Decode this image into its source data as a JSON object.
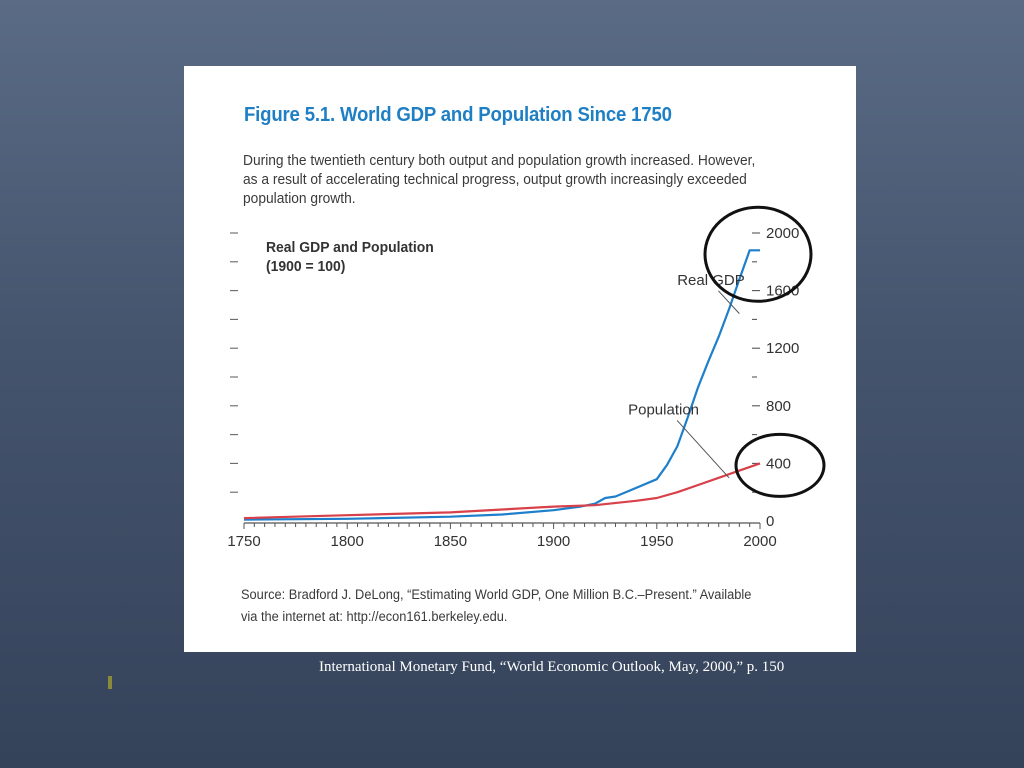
{
  "figure": {
    "title": "Figure 5.1.  World GDP and Population Since 1750",
    "description_lines": [
      "During the twentieth century both output and population growth increased. However,",
      "as a result of accelerating technical progress, output growth increasingly exceeded",
      "population growth."
    ],
    "source_lines": [
      "Source: Bradford J. DeLong, “Estimating World GDP, One Million B.C.–Present.” Available",
      "via the internet at: http://econ161.berkeley.edu."
    ]
  },
  "caption": "International Monetary Fund, “World Economic Outlook, May, 2000,” p. 150",
  "chart_data": {
    "type": "line",
    "title_lines": [
      "Real GDP and Population",
      "(1900 = 100)"
    ],
    "xlim": [
      1750,
      2000
    ],
    "ylim": [
      0,
      2000
    ],
    "x_ticks": [
      1750,
      1800,
      1850,
      1900,
      1950,
      2000
    ],
    "y_tick_labels": [
      {
        "value": 0,
        "label": "0"
      },
      {
        "value": 400,
        "label": "400"
      },
      {
        "value": 800,
        "label": "800"
      },
      {
        "value": 1200,
        "label": "1200"
      },
      {
        "value": 1600,
        "label": "1600"
      },
      {
        "value": 2000,
        "label": "2000"
      }
    ],
    "series": [
      {
        "name": "Real GDP",
        "color": "#1e7fcb",
        "points": [
          [
            1750,
            10
          ],
          [
            1800,
            15
          ],
          [
            1850,
            30
          ],
          [
            1875,
            45
          ],
          [
            1900,
            75
          ],
          [
            1913,
            100
          ],
          [
            1920,
            120
          ],
          [
            1925,
            160
          ],
          [
            1930,
            170
          ],
          [
            1940,
            230
          ],
          [
            1950,
            290
          ],
          [
            1955,
            390
          ],
          [
            1960,
            520
          ],
          [
            1965,
            720
          ],
          [
            1970,
            930
          ],
          [
            1975,
            1110
          ],
          [
            1980,
            1280
          ],
          [
            1985,
            1470
          ],
          [
            1990,
            1680
          ],
          [
            1995,
            1880
          ],
          [
            2000,
            1880
          ]
        ]
      },
      {
        "name": "Population",
        "color": "#d8404a",
        "points": [
          [
            1750,
            20
          ],
          [
            1800,
            40
          ],
          [
            1850,
            60
          ],
          [
            1900,
            100
          ],
          [
            1920,
            110
          ],
          [
            1940,
            140
          ],
          [
            1950,
            160
          ],
          [
            1960,
            200
          ],
          [
            1970,
            250
          ],
          [
            1980,
            300
          ],
          [
            1990,
            350
          ],
          [
            2000,
            400
          ]
        ]
      }
    ],
    "annotations": [
      {
        "text": "Real GDP",
        "series": "Real GDP",
        "at": [
          1990,
          1440
        ],
        "label_at": [
          1975,
          1640
        ]
      },
      {
        "text": "Population",
        "series": "Population",
        "at": [
          1985,
          300
        ],
        "label_at": [
          1955,
          740
        ]
      }
    ],
    "highlight_circles": [
      "Real GDP endpoint near 2000",
      "Population endpoint near 400"
    ]
  }
}
